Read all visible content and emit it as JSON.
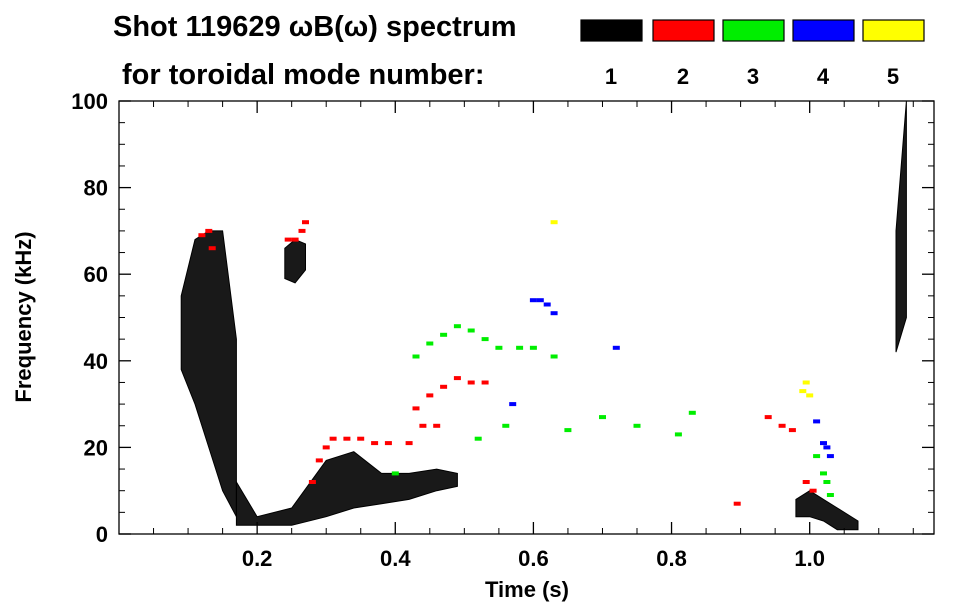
{
  "chart_data": {
    "type": "heatmap",
    "title_line1": "Shot 119629 ωB(ω) spectrum",
    "title_line2": "for toroidal mode number:",
    "xlabel": "Time (s)",
    "ylabel": "Frequency (kHz)",
    "xlim": [
      0,
      1.18
    ],
    "ylim": [
      0,
      100
    ],
    "x_ticks": [
      {
        "value": 0.2,
        "label": "0.2"
      },
      {
        "value": 0.4,
        "label": "0.4"
      },
      {
        "value": 0.6,
        "label": "0.6"
      },
      {
        "value": 0.8,
        "label": "0.8"
      },
      {
        "value": 1.0,
        "label": "1.0"
      }
    ],
    "y_ticks": [
      {
        "value": 0,
        "label": "0"
      },
      {
        "value": 20,
        "label": "20"
      },
      {
        "value": 40,
        "label": "40"
      },
      {
        "value": 60,
        "label": "60"
      },
      {
        "value": 80,
        "label": "80"
      },
      {
        "value": 100,
        "label": "100"
      }
    ],
    "legend": [
      {
        "n": "1",
        "color": "#000000"
      },
      {
        "n": "2",
        "color": "#ff0000"
      },
      {
        "n": "3",
        "color": "#00ee00"
      },
      {
        "n": "4",
        "color": "#0000ff"
      },
      {
        "n": "5",
        "color": "#ffff00"
      }
    ],
    "series": [
      {
        "mode": 1,
        "color": "#000000",
        "features": [
          {
            "name": "early broadband",
            "t": [
              0.09,
              0.11,
              0.13,
              0.15,
              0.17
            ],
            "f_low": [
              38,
              30,
              20,
              10,
              4
            ],
            "f_high": [
              55,
              68,
              70,
              70,
              45
            ]
          },
          {
            "name": "low-frequency band",
            "t": [
              0.17,
              0.2,
              0.25,
              0.3,
              0.34,
              0.38,
              0.42,
              0.46,
              0.49
            ],
            "f_low": [
              2,
              2,
              2,
              4,
              6,
              7,
              8,
              10,
              11
            ],
            "f_high": [
              12,
              4,
              6,
              17,
              19,
              14,
              14,
              15,
              14
            ]
          },
          {
            "name": "early high-frequency patch",
            "t": [
              0.24,
              0.255,
              0.27
            ],
            "f_low": [
              59,
              58,
              61
            ],
            "f_high": [
              66,
              68,
              67
            ]
          },
          {
            "name": "late band",
            "t": [
              0.98,
              1.0,
              1.02,
              1.04,
              1.07
            ],
            "f_low": [
              4,
              4,
              3,
              1,
              1
            ],
            "f_high": [
              8,
              10,
              8,
              6,
              3
            ]
          },
          {
            "name": "end spike",
            "t": [
              1.125,
              1.14
            ],
            "f_low": [
              42,
              50
            ],
            "f_high": [
              70,
              100
            ]
          }
        ]
      },
      {
        "mode": 2,
        "color": "#ff0000",
        "points": [
          [
            0.12,
            69
          ],
          [
            0.13,
            70
          ],
          [
            0.135,
            66
          ],
          [
            0.245,
            68
          ],
          [
            0.255,
            68
          ],
          [
            0.265,
            70
          ],
          [
            0.27,
            72
          ],
          [
            0.28,
            12
          ],
          [
            0.29,
            17
          ],
          [
            0.3,
            20
          ],
          [
            0.31,
            22
          ],
          [
            0.33,
            22
          ],
          [
            0.35,
            22
          ],
          [
            0.37,
            21
          ],
          [
            0.39,
            21
          ],
          [
            0.42,
            21
          ],
          [
            0.43,
            29
          ],
          [
            0.45,
            32
          ],
          [
            0.47,
            34
          ],
          [
            0.49,
            36
          ],
          [
            0.51,
            35
          ],
          [
            0.53,
            35
          ],
          [
            0.44,
            25
          ],
          [
            0.46,
            25
          ],
          [
            0.895,
            7
          ],
          [
            0.94,
            27
          ],
          [
            0.96,
            25
          ],
          [
            0.975,
            24
          ],
          [
            0.995,
            12
          ],
          [
            1.005,
            10
          ]
        ]
      },
      {
        "mode": 3,
        "color": "#00ee00",
        "points": [
          [
            0.43,
            41
          ],
          [
            0.45,
            44
          ],
          [
            0.47,
            46
          ],
          [
            0.49,
            48
          ],
          [
            0.51,
            47
          ],
          [
            0.53,
            45
          ],
          [
            0.55,
            43
          ],
          [
            0.58,
            43
          ],
          [
            0.6,
            43
          ],
          [
            0.63,
            41
          ],
          [
            0.65,
            24
          ],
          [
            0.7,
            27
          ],
          [
            0.75,
            25
          ],
          [
            0.81,
            23
          ],
          [
            0.83,
            28
          ],
          [
            1.01,
            18
          ],
          [
            1.02,
            14
          ],
          [
            1.025,
            12
          ],
          [
            1.03,
            9
          ],
          [
            0.4,
            14
          ],
          [
            0.52,
            22
          ],
          [
            0.56,
            25
          ]
        ]
      },
      {
        "mode": 4,
        "color": "#0000ff",
        "points": [
          [
            0.6,
            54
          ],
          [
            0.61,
            54
          ],
          [
            0.62,
            53
          ],
          [
            0.63,
            51
          ],
          [
            0.72,
            43
          ],
          [
            0.57,
            30
          ],
          [
            1.01,
            26
          ],
          [
            1.02,
            21
          ],
          [
            1.025,
            20
          ],
          [
            1.03,
            18
          ]
        ]
      },
      {
        "mode": 5,
        "color": "#ffff00",
        "points": [
          [
            0.63,
            72
          ],
          [
            0.99,
            33
          ],
          [
            0.995,
            35
          ],
          [
            1.0,
            32
          ]
        ]
      }
    ]
  }
}
